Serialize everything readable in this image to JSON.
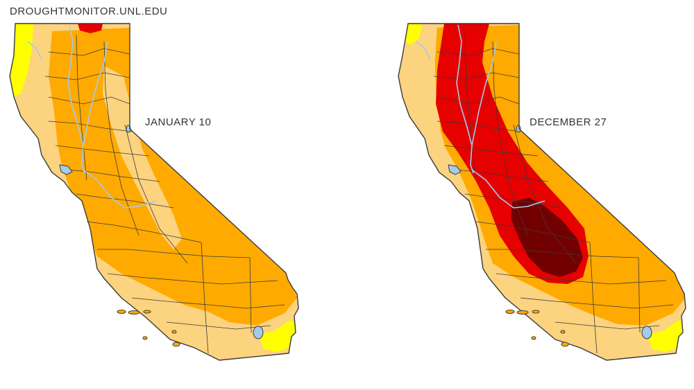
{
  "source": "DROUGHTMONITOR.UNL.EDU",
  "colors": {
    "D0": "#ffff00",
    "D1": "#fcd37f",
    "D2": "#ffaa00",
    "D3": "#e60000",
    "D4": "#730000",
    "water": "#a3cbea",
    "border": "#3a3a3a"
  },
  "maps": [
    {
      "date": "JANUARY 10"
    },
    {
      "date": "DECEMBER 27"
    }
  ]
}
